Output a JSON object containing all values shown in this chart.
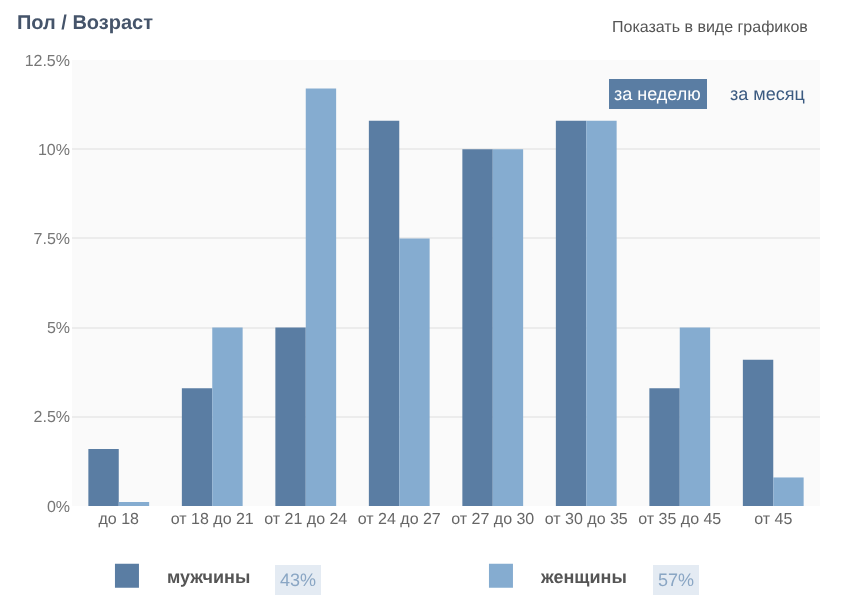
{
  "chart_data": {
    "type": "bar",
    "title": "Пол / Возраст",
    "categories": [
      "до 18",
      "от 18 до 21",
      "от 21 до 24",
      "от 24 до 27",
      "от 27 до 30",
      "от 30 до 35",
      "от 35 до 45",
      "от 45"
    ],
    "series": [
      {
        "name": "мужчины",
        "color": "#5a7da3",
        "values": [
          1.6,
          3.3,
          5,
          10.8,
          10,
          10.8,
          3.3,
          4.1
        ]
      },
      {
        "name": "женщины",
        "color": "#85acd0",
        "values": [
          0.1,
          5,
          11.7,
          7.5,
          10,
          10.8,
          5,
          0.8
        ]
      }
    ],
    "ylim": [
      0,
      12.5
    ],
    "yticks": [
      {
        "value": 0,
        "label": "0%"
      },
      {
        "value": 2.5,
        "label": "2.5%"
      },
      {
        "value": 5,
        "label": "5%"
      },
      {
        "value": 7.5,
        "label": "7.5%"
      },
      {
        "value": 10,
        "label": "10%"
      },
      {
        "value": 12.5,
        "label": "12.5%"
      }
    ],
    "grid": "y",
    "legend": "bottom",
    "annotations": [
      "Показать в виде графиков",
      "за неделю",
      "за месяц",
      "43%",
      "57%"
    ]
  }
}
